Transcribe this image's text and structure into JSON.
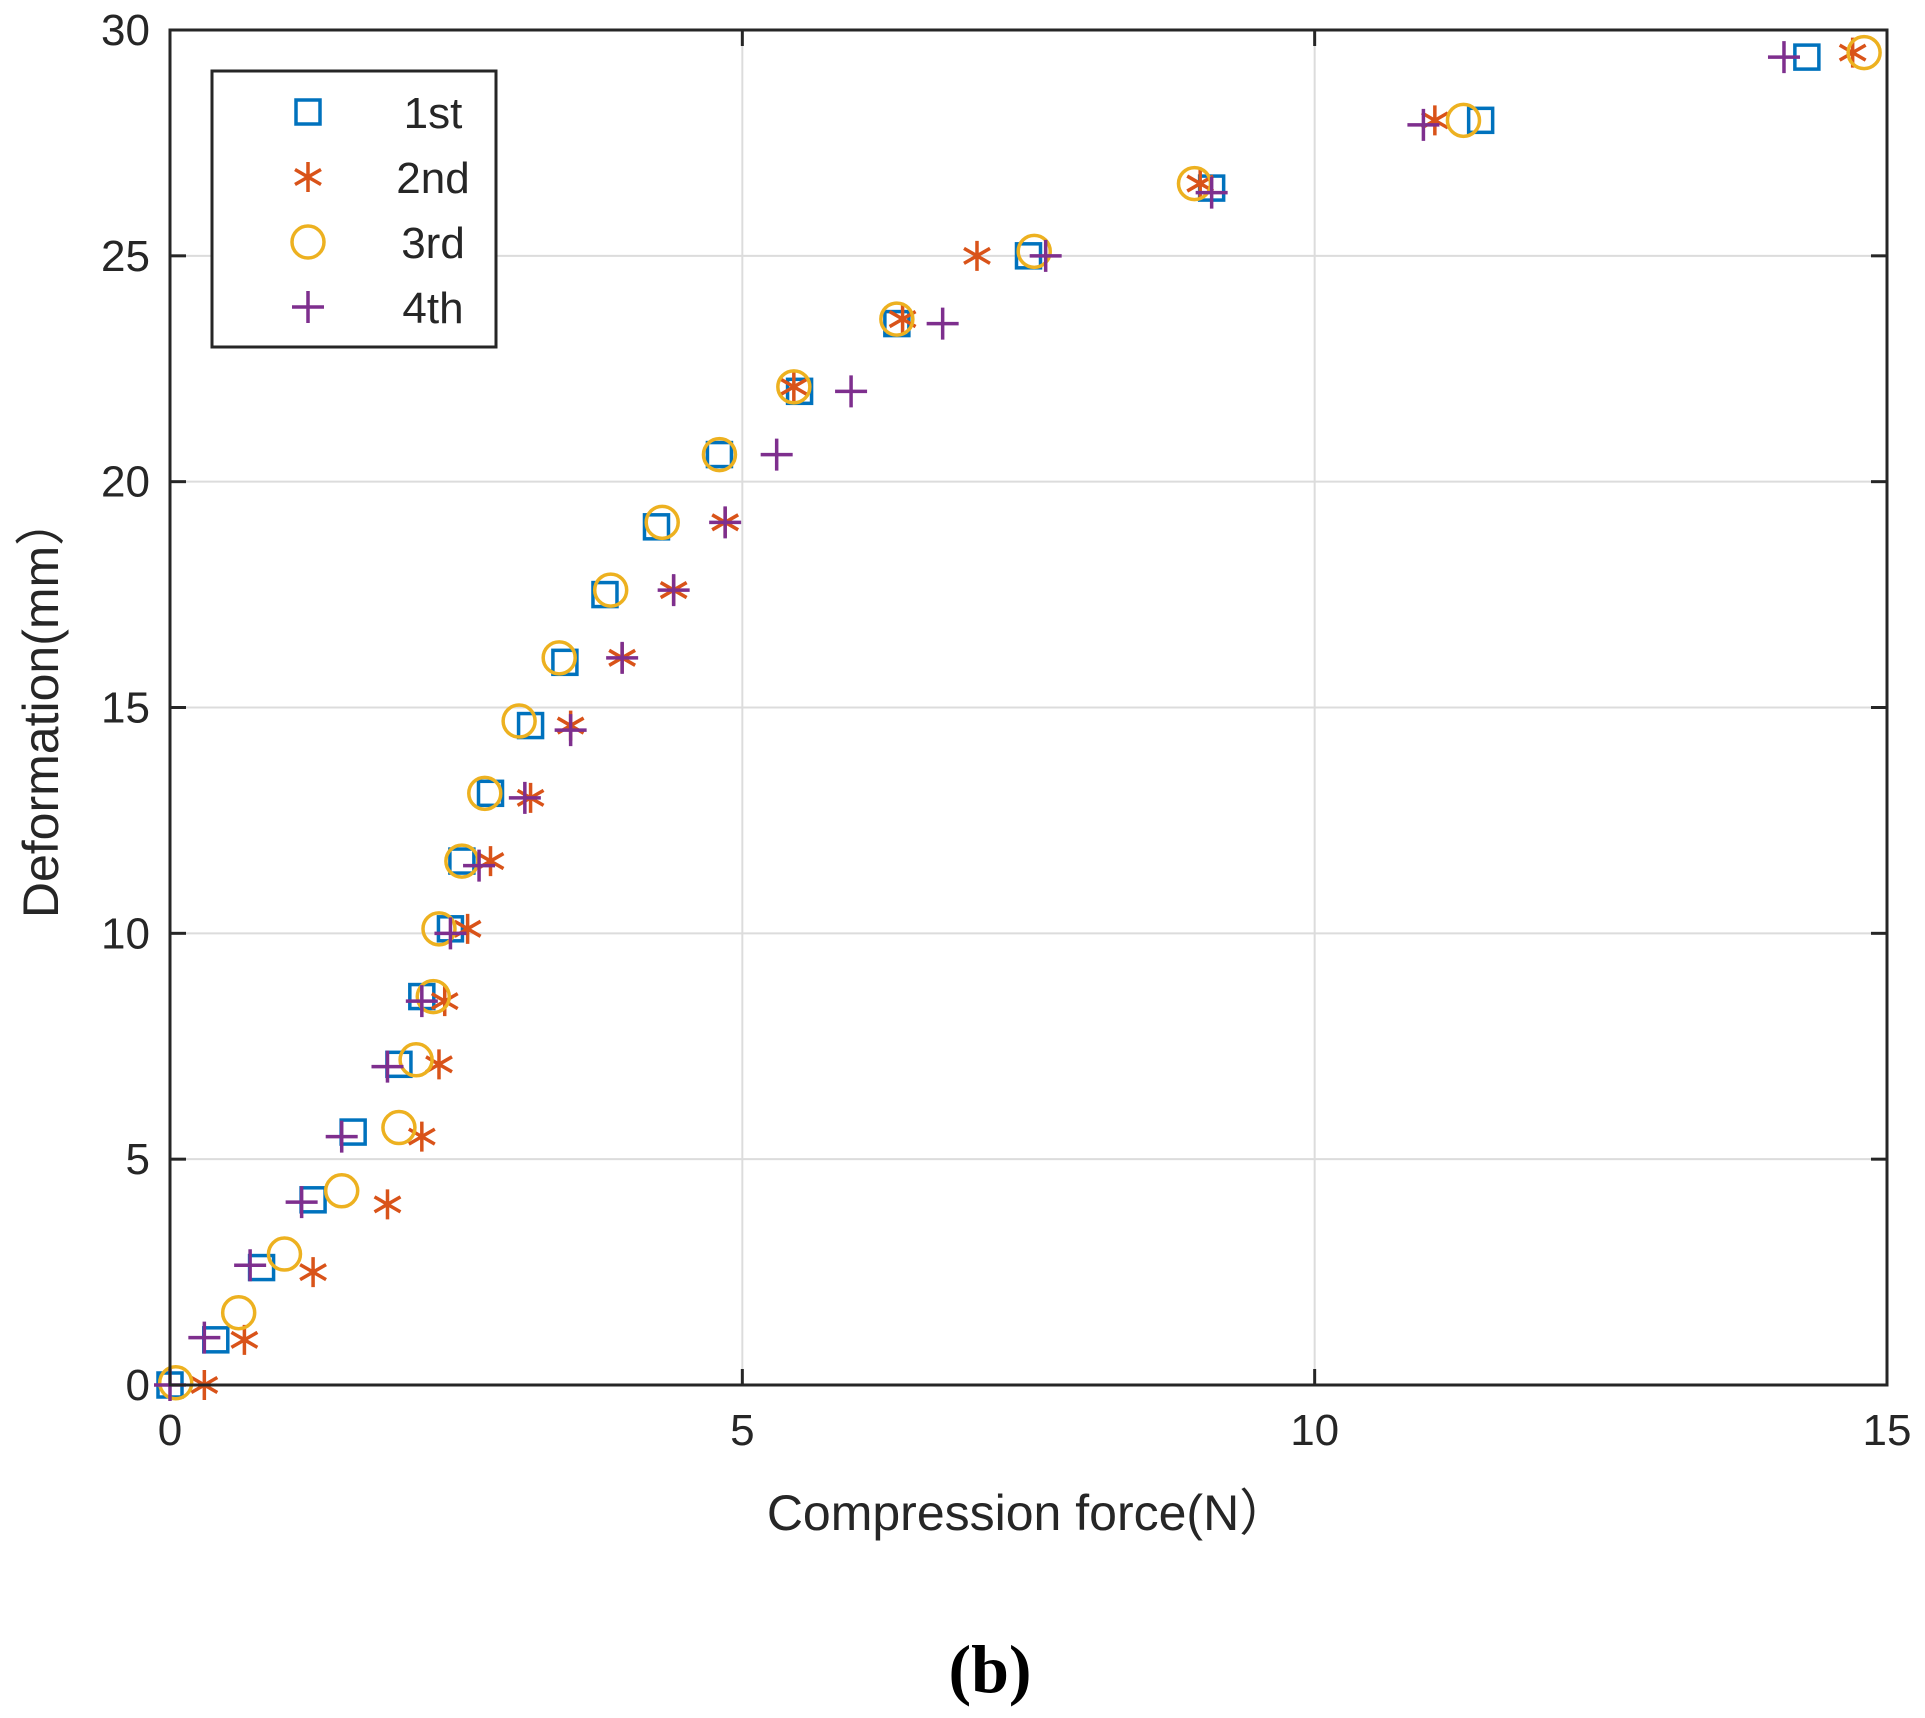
{
  "chart_data": {
    "type": "scatter",
    "title": "",
    "xlabel": "Compression force(N）",
    "ylabel": "Deformation(mm）",
    "xlim": [
      0,
      15
    ],
    "ylim": [
      0,
      30
    ],
    "xticks": [
      0,
      5,
      10,
      15
    ],
    "yticks": [
      0,
      5,
      10,
      15,
      20,
      25,
      30
    ],
    "grid": true,
    "legend_position": "top-left",
    "panel_label": "(b)",
    "series": [
      {
        "name": "1st",
        "marker": "square",
        "color": "#0072BD",
        "points": [
          [
            0.0,
            0.0
          ],
          [
            0.4,
            1.0
          ],
          [
            0.8,
            2.6
          ],
          [
            1.25,
            4.1
          ],
          [
            1.6,
            5.6
          ],
          [
            2.0,
            7.1
          ],
          [
            2.2,
            8.6
          ],
          [
            2.45,
            10.1
          ],
          [
            2.55,
            11.6
          ],
          [
            2.8,
            13.1
          ],
          [
            3.15,
            14.6
          ],
          [
            3.45,
            16.0
          ],
          [
            3.8,
            17.5
          ],
          [
            4.25,
            19.0
          ],
          [
            4.8,
            20.6
          ],
          [
            5.5,
            22.0
          ],
          [
            6.35,
            23.5
          ],
          [
            7.5,
            25.0
          ],
          [
            9.1,
            26.5
          ],
          [
            11.45,
            28.0
          ],
          [
            14.3,
            29.4
          ]
        ]
      },
      {
        "name": "2nd",
        "marker": "asterisk",
        "color": "#D95319",
        "points": [
          [
            0.3,
            0.0
          ],
          [
            0.65,
            1.0
          ],
          [
            1.25,
            2.5
          ],
          [
            1.9,
            4.0
          ],
          [
            2.2,
            5.5
          ],
          [
            2.35,
            7.1
          ],
          [
            2.4,
            8.5
          ],
          [
            2.6,
            10.1
          ],
          [
            2.8,
            11.6
          ],
          [
            3.15,
            13.0
          ],
          [
            3.5,
            14.6
          ],
          [
            3.95,
            16.1
          ],
          [
            4.4,
            17.6
          ],
          [
            4.85,
            19.1
          ],
          [
            5.45,
            22.1
          ],
          [
            6.4,
            23.6
          ],
          [
            7.05,
            25.0
          ],
          [
            9.0,
            26.6
          ],
          [
            11.05,
            28.0
          ],
          [
            14.7,
            29.5
          ]
        ]
      },
      {
        "name": "3rd",
        "marker": "circle",
        "color": "#EDB120",
        "points": [
          [
            0.05,
            0.05
          ],
          [
            0.6,
            1.6
          ],
          [
            1.0,
            2.9
          ],
          [
            1.5,
            4.3
          ],
          [
            2.0,
            5.7
          ],
          [
            2.15,
            7.2
          ],
          [
            2.3,
            8.6
          ],
          [
            2.35,
            10.1
          ],
          [
            2.55,
            11.6
          ],
          [
            2.75,
            13.1
          ],
          [
            3.05,
            14.7
          ],
          [
            3.4,
            16.1
          ],
          [
            3.85,
            17.6
          ],
          [
            4.3,
            19.1
          ],
          [
            4.8,
            20.6
          ],
          [
            5.45,
            22.1
          ],
          [
            6.35,
            23.6
          ],
          [
            7.55,
            25.1
          ],
          [
            8.95,
            26.6
          ],
          [
            11.3,
            28.0
          ],
          [
            14.8,
            29.5
          ]
        ]
      },
      {
        "name": "4th",
        "marker": "plus",
        "color": "#7E2F8E",
        "points": [
          [
            0.0,
            0.0
          ],
          [
            0.3,
            1.05
          ],
          [
            0.7,
            2.65
          ],
          [
            1.15,
            4.05
          ],
          [
            1.5,
            5.5
          ],
          [
            1.9,
            7.05
          ],
          [
            2.2,
            8.5
          ],
          [
            2.45,
            10.0
          ],
          [
            2.7,
            11.5
          ],
          [
            3.1,
            13.0
          ],
          [
            3.5,
            14.5
          ],
          [
            3.95,
            16.1
          ],
          [
            4.4,
            17.6
          ],
          [
            4.85,
            19.1
          ],
          [
            5.3,
            20.6
          ],
          [
            5.95,
            22.0
          ],
          [
            6.75,
            23.5
          ],
          [
            7.65,
            25.0
          ],
          [
            9.1,
            26.4
          ],
          [
            10.95,
            27.9
          ],
          [
            14.1,
            29.4
          ]
        ]
      }
    ]
  }
}
